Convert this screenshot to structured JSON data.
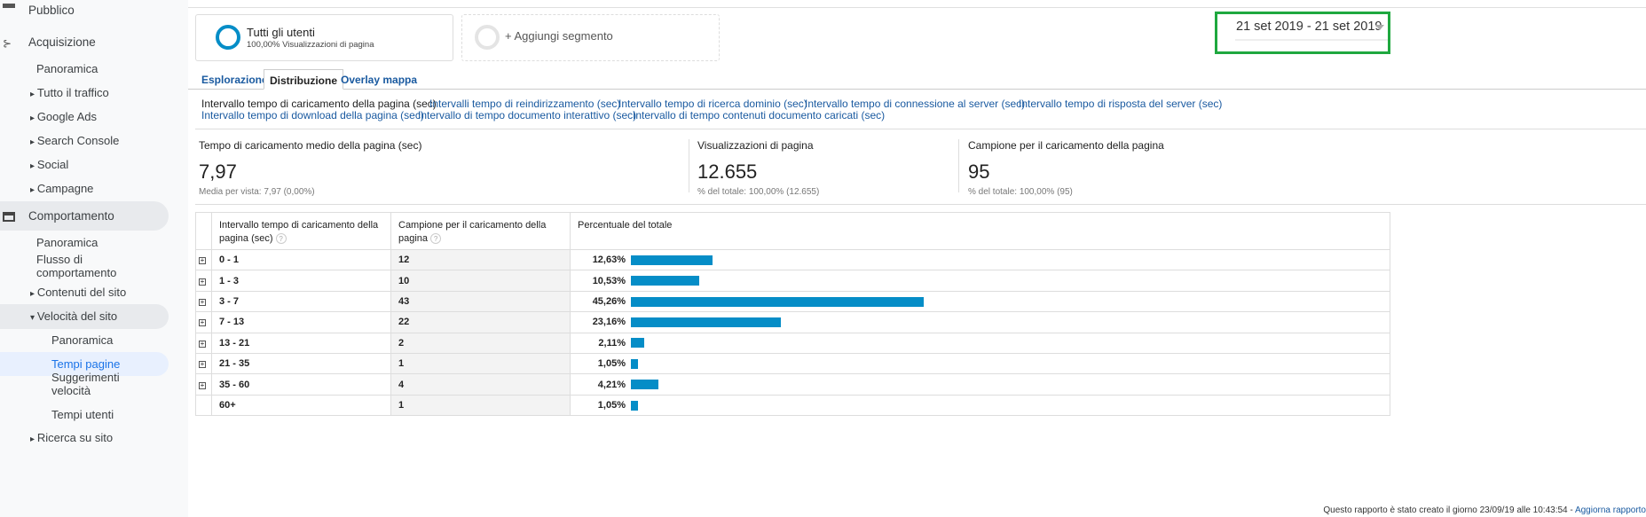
{
  "sidebar": {
    "items": [
      {
        "label": "Pubblico",
        "type": "top"
      },
      {
        "label": "Acquisizione",
        "type": "top"
      },
      {
        "label": "Panoramica",
        "type": "sub"
      },
      {
        "label": "Tutto il traffico",
        "type": "arrow"
      },
      {
        "label": "Google Ads",
        "type": "arrow"
      },
      {
        "label": "Search Console",
        "type": "arrow"
      },
      {
        "label": "Social",
        "type": "arrow"
      },
      {
        "label": "Campagne",
        "type": "arrow"
      },
      {
        "label": "Comportamento",
        "type": "top"
      },
      {
        "label": "Panoramica",
        "type": "sub"
      },
      {
        "label": "Flusso di comportamento",
        "type": "sub"
      },
      {
        "label": "Contenuti del sito",
        "type": "arrow"
      },
      {
        "label": "Velocità del sito",
        "type": "open"
      },
      {
        "label": "Panoramica",
        "type": "sub2"
      },
      {
        "label": "Tempi pagine",
        "type": "sub2",
        "selected": true
      },
      {
        "label": "Suggerimenti velocità",
        "type": "sub2"
      },
      {
        "label": "Tempi utenti",
        "type": "sub2"
      },
      {
        "label": "Ricerca su sito",
        "type": "arrow"
      }
    ]
  },
  "segment": {
    "name": "Tutti gli utenti",
    "sub": "100,00% Visualizzazioni di pagina",
    "add": "+ Aggiungi segmento"
  },
  "date_range": "21 set 2019 - 21 set 2019",
  "tabs": [
    "Esplorazione",
    "Distribuzione",
    "Overlay mappa"
  ],
  "dimension_links": [
    "Intervallo tempo di caricamento della pagina (sec)",
    "Intervalli tempo di reindirizzamento (sec)",
    "Intervallo tempo di ricerca dominio (sec)",
    "Intervallo tempo di connessione al server (sec)",
    "Intervallo tempo di risposta del server (sec)",
    "Intervallo tempo di download della pagina (sec)",
    "Intervallo di tempo documento interattivo (sec)",
    "Intervallo di tempo contenuti documento caricati (sec)"
  ],
  "metrics": [
    {
      "label": "Tempo di caricamento medio della pagina (sec)",
      "value": "7,97",
      "sub": "Media per vista: 7,97 (0,00%)"
    },
    {
      "label": "Visualizzazioni di pagina",
      "value": "12.655",
      "sub": "% del totale: 100,00% (12.655)"
    },
    {
      "label": "Campione per il caricamento della pagina",
      "value": "95",
      "sub": "% del totale: 100,00% (95)"
    }
  ],
  "table": {
    "headers": [
      "Intervallo tempo di caricamento della pagina (sec)",
      "Campione per il caricamento della pagina",
      "Percentuale del totale"
    ],
    "rows": [
      {
        "range": "0 - 1",
        "sample": "12",
        "pct": "12,63%",
        "pct_value": 12.63,
        "expandable": true
      },
      {
        "range": "1 - 3",
        "sample": "10",
        "pct": "10,53%",
        "pct_value": 10.53,
        "expandable": true
      },
      {
        "range": "3 - 7",
        "sample": "43",
        "pct": "45,26%",
        "pct_value": 45.26,
        "expandable": true
      },
      {
        "range": "7 - 13",
        "sample": "22",
        "pct": "23,16%",
        "pct_value": 23.16,
        "expandable": true
      },
      {
        "range": "13 - 21",
        "sample": "2",
        "pct": "2,11%",
        "pct_value": 2.11,
        "expandable": true
      },
      {
        "range": "21 - 35",
        "sample": "1",
        "pct": "1,05%",
        "pct_value": 1.05,
        "expandable": true
      },
      {
        "range": "35 - 60",
        "sample": "4",
        "pct": "4,21%",
        "pct_value": 4.21,
        "expandable": true
      },
      {
        "range": "60+",
        "sample": "1",
        "pct": "1,05%",
        "pct_value": 1.05,
        "expandable": false
      }
    ]
  },
  "footer": {
    "text": "Questo rapporto è stato creato il giorno 23/09/19 alle 10:43:54 - ",
    "link": "Aggiorna rapporto"
  },
  "colors": {
    "accent": "#058dc7",
    "highlight_box": "#1fa83f",
    "link": "#1a5aa0"
  }
}
